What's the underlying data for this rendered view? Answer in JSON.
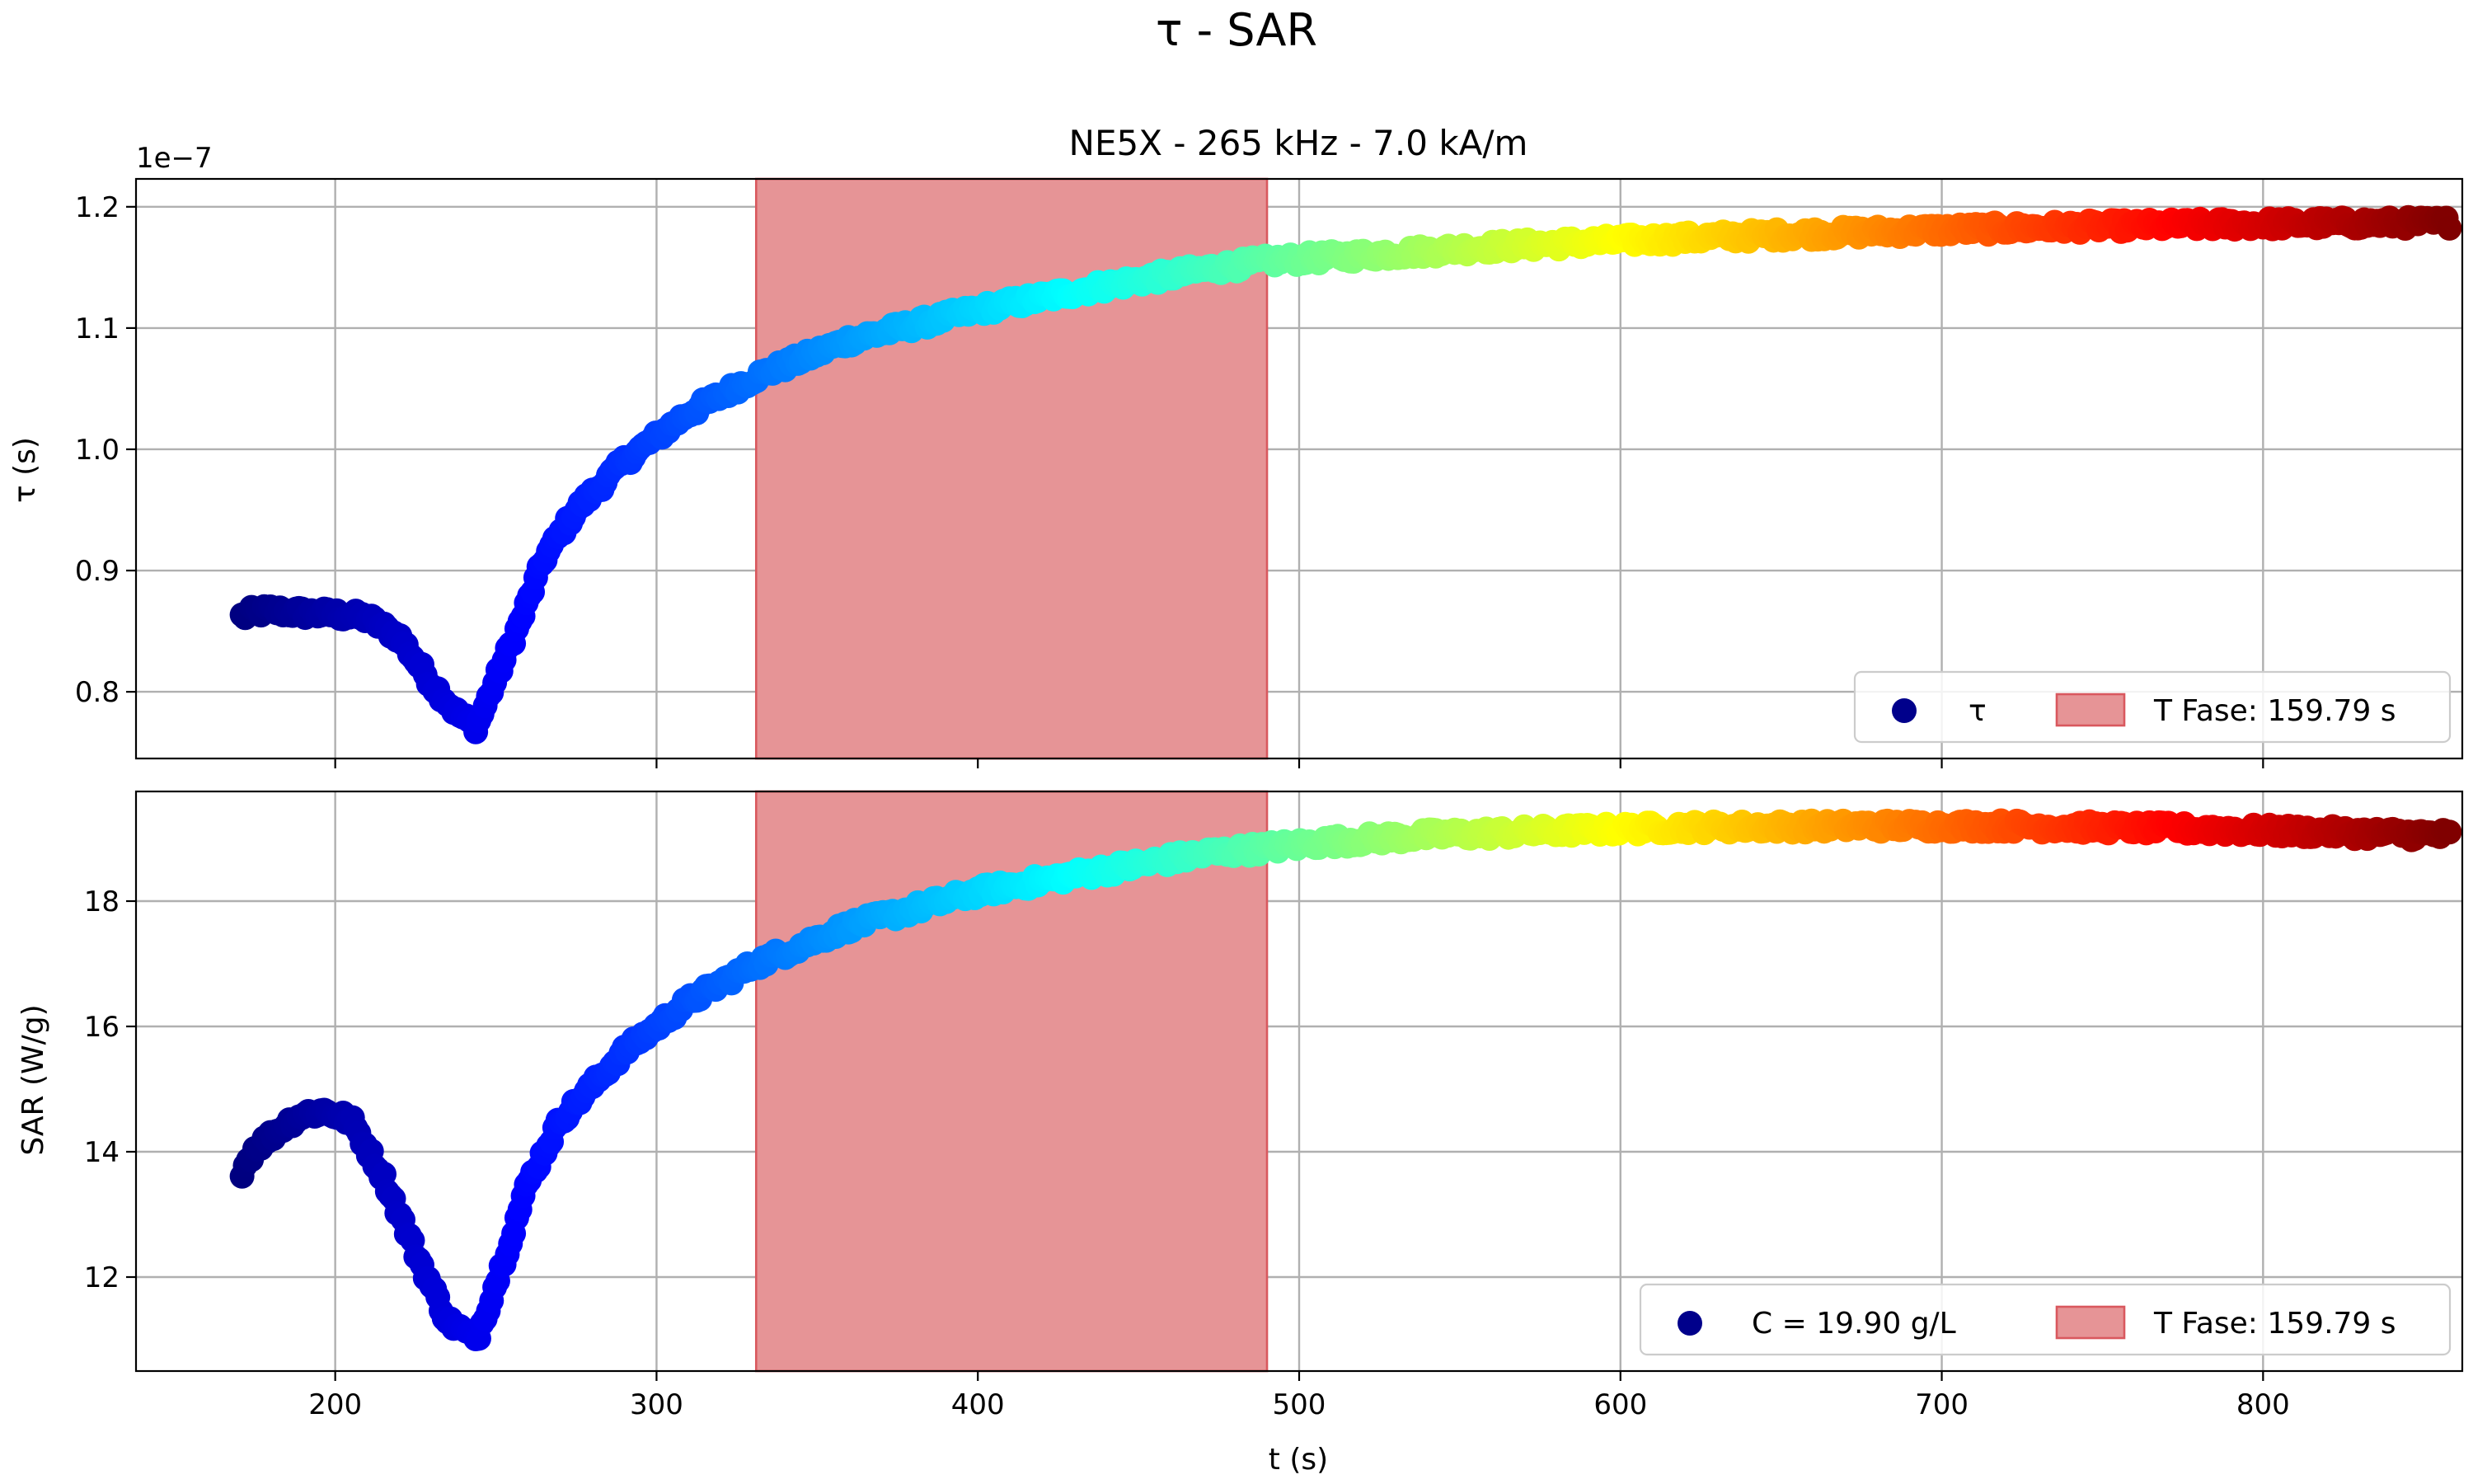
{
  "figure": {
    "suptitle": "τ - SAR",
    "xlabel": "t (s)"
  },
  "chart_data": [
    {
      "type": "scatter",
      "title": "NE5X - 265 kHz -  7.0 kA/m",
      "xlabel": "",
      "ylabel": "τ (s)",
      "y_offset_label": "1e−7",
      "xlim": [
        138,
        862
      ],
      "ylim": [
        0.745,
        1.223
      ],
      "y_scale_note": "values multiplied by 1e-7",
      "x_ticks": [
        200,
        300,
        400,
        500,
        600,
        700,
        800
      ],
      "x_tick_labels": [
        "",
        "",
        "",
        "",
        "",
        "",
        ""
      ],
      "y_ticks": [
        0.8,
        0.9,
        1.0,
        1.1,
        1.2
      ],
      "y_tick_labels": [
        "0.8",
        "0.9",
        "1.0",
        "1.1",
        "1.2"
      ],
      "grid": true,
      "colormap": "jet (by time)",
      "shaded_span": {
        "x0": 331,
        "x1": 490,
        "color": "#e69496"
      },
      "curve_knots_x": [
        171,
        175,
        180,
        185,
        190,
        200,
        210,
        220,
        230,
        238,
        244,
        250,
        258,
        265,
        275,
        290,
        310,
        331,
        360,
        400,
        440,
        470,
        490,
        500,
        520,
        560,
        600,
        650,
        700,
        750,
        800,
        860
      ],
      "curve_knots_y": [
        0.862,
        0.866,
        0.867,
        0.866,
        0.865,
        0.864,
        0.861,
        0.845,
        0.807,
        0.782,
        0.771,
        0.81,
        0.86,
        0.91,
        0.95,
        0.99,
        1.03,
        1.06,
        1.09,
        1.115,
        1.135,
        1.148,
        1.155,
        1.157,
        1.16,
        1.167,
        1.172,
        1.177,
        1.181,
        1.184,
        1.186,
        1.187
      ],
      "series": [
        {
          "name": "τ",
          "marker_color": "#00008b",
          "t_range": [
            171,
            858
          ]
        }
      ],
      "legend": {
        "placement": "lower right",
        "entries": [
          {
            "label": "τ",
            "kind": "marker",
            "color": "#00008b"
          },
          {
            "label": "T Fase: 159.79 s",
            "kind": "patch",
            "color": "#e69496"
          }
        ]
      }
    },
    {
      "type": "scatter",
      "title": "",
      "xlabel": "t (s)",
      "ylabel": "SAR (W/g)",
      "xlim": [
        138,
        862
      ],
      "ylim": [
        10.5,
        19.75
      ],
      "x_ticks": [
        200,
        300,
        400,
        500,
        600,
        700,
        800
      ],
      "x_tick_labels": [
        "200",
        "300",
        "400",
        "500",
        "600",
        "700",
        "800"
      ],
      "y_ticks": [
        12,
        14,
        16,
        18
      ],
      "y_tick_labels": [
        "12",
        "14",
        "16",
        "18"
      ],
      "grid": true,
      "colormap": "jet (by time)",
      "shaded_span": {
        "x0": 331,
        "x1": 490,
        "color": "#e69496"
      },
      "curve_knots_x": [
        171,
        175,
        180,
        185,
        190,
        197,
        205,
        215,
        225,
        235,
        244,
        252,
        260,
        270,
        290,
        310,
        331,
        360,
        400,
        440,
        470,
        490,
        510,
        540,
        580,
        620,
        680,
        720,
        780,
        820,
        860
      ],
      "curve_knots_y": [
        13.7,
        14.05,
        14.25,
        14.45,
        14.6,
        14.65,
        14.5,
        13.6,
        12.4,
        11.3,
        11.0,
        12.2,
        13.5,
        14.5,
        15.6,
        16.4,
        17.0,
        17.6,
        18.15,
        18.5,
        18.75,
        18.85,
        18.95,
        19.05,
        19.12,
        19.18,
        19.2,
        19.2,
        19.15,
        19.1,
        19.05
      ],
      "series": [
        {
          "name": "C = 19.90 g/L",
          "marker_color": "#00008b",
          "t_range": [
            171,
            858
          ]
        }
      ],
      "legend": {
        "placement": "lower right",
        "entries": [
          {
            "label": "C = 19.90 g/L",
            "kind": "marker",
            "color": "#00008b"
          },
          {
            "label": "T Fase: 159.79 s",
            "kind": "patch",
            "color": "#e69496"
          }
        ]
      }
    }
  ]
}
